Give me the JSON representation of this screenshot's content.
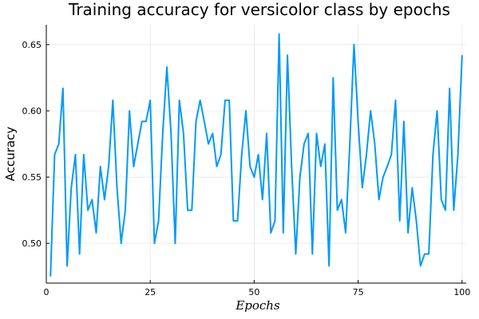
{
  "chart_data": {
    "type": "line",
    "title": "Training accuracy for versicolor class by epochs",
    "xlabel": "Epochs",
    "ylabel": "Accuracy",
    "xlim": [
      0,
      101
    ],
    "ylim": [
      0.47,
      0.665
    ],
    "x_ticks": [
      {
        "value": 0,
        "label": "0"
      },
      {
        "value": 25,
        "label": "25"
      },
      {
        "value": 50,
        "label": "50"
      },
      {
        "value": 75,
        "label": "75"
      },
      {
        "value": 100,
        "label": "100"
      }
    ],
    "y_ticks": [
      {
        "value": 0.5,
        "label": "0.50"
      },
      {
        "value": 0.55,
        "label": "0.55"
      },
      {
        "value": 0.6,
        "label": "0.60"
      },
      {
        "value": 0.65,
        "label": "0.65"
      }
    ],
    "grid": true,
    "legend": "none",
    "color": "#009af9",
    "series": [
      {
        "x": [
          1,
          2,
          3,
          4,
          5,
          6,
          7,
          8,
          9,
          10,
          11,
          12,
          13,
          14,
          15,
          16,
          17,
          18,
          19,
          20,
          21,
          22,
          23,
          24,
          25,
          26,
          27,
          28,
          29,
          30,
          31,
          32,
          33,
          34,
          35,
          36,
          37,
          38,
          39,
          40,
          41,
          42,
          43,
          44,
          45,
          46,
          47,
          48,
          49,
          50,
          51,
          52,
          53,
          54,
          55,
          56,
          57,
          58,
          59,
          60,
          61,
          62,
          63,
          64,
          65,
          66,
          67,
          68,
          69,
          70,
          71,
          72,
          73,
          74,
          75,
          76,
          77,
          78,
          79,
          80,
          81,
          82,
          83,
          84,
          85,
          86,
          87,
          88,
          89,
          90,
          91,
          92,
          93,
          94,
          95,
          96,
          97,
          98,
          99,
          100
        ],
        "values": [
          0.475,
          0.567,
          0.575,
          0.617,
          0.483,
          0.542,
          0.567,
          0.492,
          0.567,
          0.525,
          0.533,
          0.508,
          0.558,
          0.533,
          0.558,
          0.608,
          0.542,
          0.5,
          0.525,
          0.6,
          0.558,
          0.575,
          0.592,
          0.592,
          0.608,
          0.5,
          0.517,
          0.583,
          0.633,
          0.583,
          0.5,
          0.608,
          0.583,
          0.525,
          0.525,
          0.592,
          0.608,
          0.592,
          0.575,
          0.583,
          0.558,
          0.567,
          0.608,
          0.608,
          0.517,
          0.517,
          0.567,
          0.6,
          0.558,
          0.55,
          0.567,
          0.533,
          0.583,
          0.508,
          0.517,
          0.658,
          0.508,
          0.642,
          0.558,
          0.492,
          0.55,
          0.575,
          0.583,
          0.492,
          0.583,
          0.558,
          0.575,
          0.483,
          0.625,
          0.525,
          0.533,
          0.508,
          0.575,
          0.65,
          0.592,
          0.542,
          0.567,
          0.6,
          0.575,
          0.533,
          0.55,
          0.558,
          0.567,
          0.608,
          0.517,
          0.592,
          0.508,
          0.542,
          0.517,
          0.483,
          0.492,
          0.492,
          0.567,
          0.6,
          0.533,
          0.525,
          0.617,
          0.525,
          0.567,
          0.642
        ]
      }
    ]
  }
}
